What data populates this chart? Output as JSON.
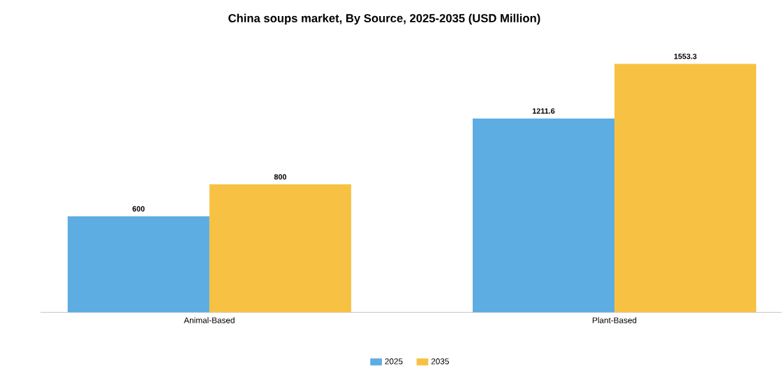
{
  "chart_data": {
    "type": "bar",
    "title": "China soups market, By Source, 2025-2035 (USD Million)",
    "categories": [
      "Animal-Based",
      "Plant-Based"
    ],
    "series": [
      {
        "name": "2025",
        "color": "#5dade2",
        "values": [
          600,
          1211.6
        ]
      },
      {
        "name": "2035",
        "color": "#f7c244",
        "values": [
          800,
          1553.3
        ]
      }
    ],
    "data_labels": true,
    "legend": "bottom"
  }
}
